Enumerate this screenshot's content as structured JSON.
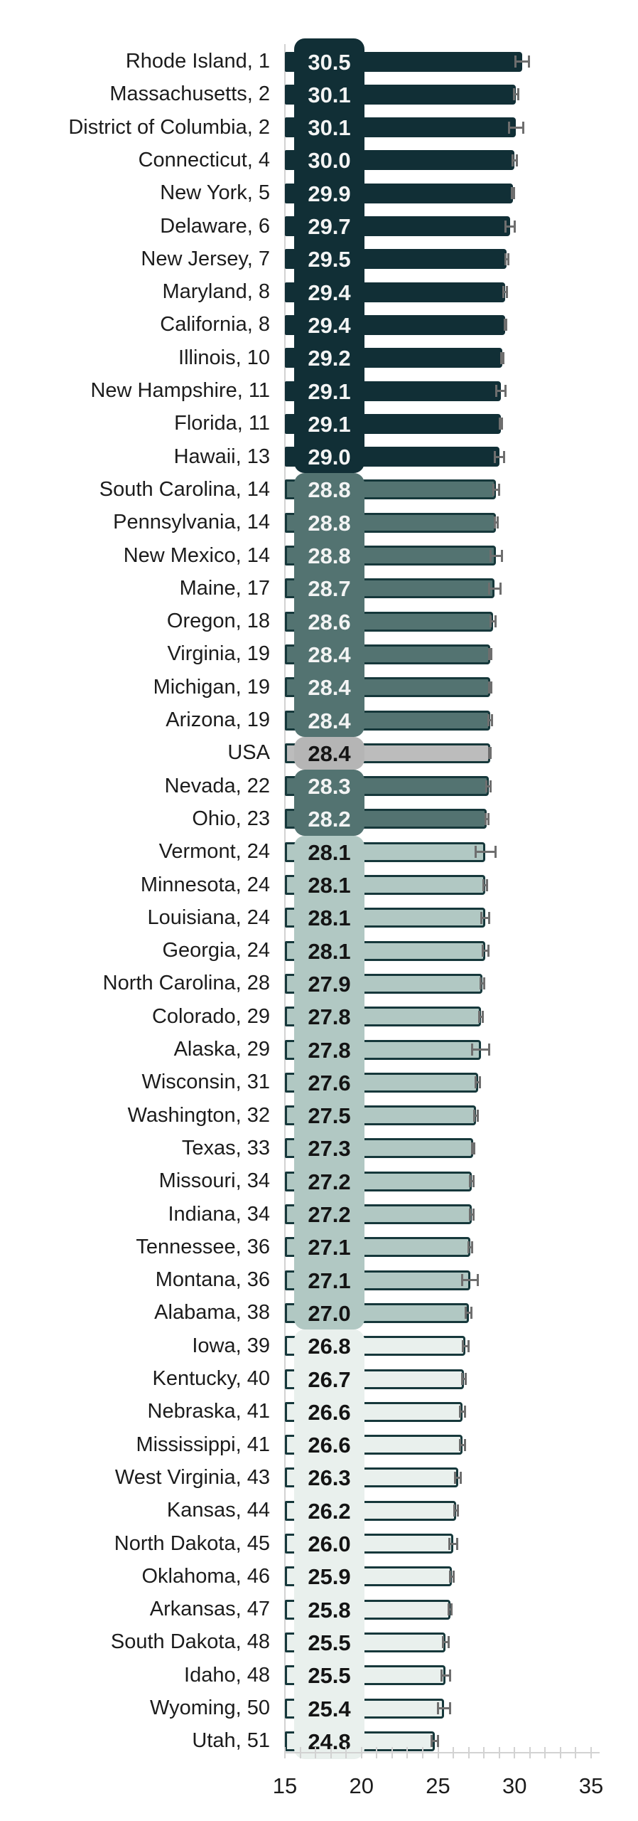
{
  "chart_data": {
    "type": "bar",
    "orientation": "horizontal",
    "title": "",
    "xlabel": "",
    "ylabel": "",
    "x_axis": {
      "min": 15,
      "max": 35,
      "major_ticks": [
        15,
        20,
        25,
        30,
        35
      ],
      "minor_tick_step": 1
    },
    "axis_tick_labels": [
      "15",
      "20",
      "25",
      "30",
      "35"
    ],
    "legend": null,
    "grid": false,
    "error_bars": true,
    "groups": {
      "dark": {
        "fill": "#112f36",
        "border": "#112f36",
        "text": "#f3f4f4",
        "column_bg": "#112f36"
      },
      "medium": {
        "fill": "#537371",
        "border": "#16383b",
        "text": "#f3f4f4",
        "column_bg": "#537371"
      },
      "usa": {
        "fill": "#bcbcbc",
        "border": "#16383b",
        "text": "#141414",
        "column_bg": "#b5b5b5"
      },
      "light": {
        "fill": "#b1c8c3",
        "border": "#16383b",
        "text": "#141414",
        "column_bg": "#b1c8c3"
      },
      "lightest": {
        "fill": "#e9f0ed",
        "border": "#16383b",
        "text": "#141414",
        "column_bg": "#e9f0ed"
      }
    },
    "segments": [
      {
        "group": "dark",
        "from": 0,
        "to": 12
      },
      {
        "group": "medium",
        "from": 13,
        "to": 20
      },
      {
        "group": "usa",
        "from": 21,
        "to": 21
      },
      {
        "group": "medium",
        "from": 22,
        "to": 23
      },
      {
        "group": "light",
        "from": 24,
        "to": 38
      },
      {
        "group": "lightest",
        "from": 39,
        "to": 51
      }
    ],
    "rows": [
      {
        "label": "Rhode Island, 1",
        "state": "Rhode Island",
        "rank": 1,
        "value": 30.5,
        "value_label": "30.5",
        "error": 0.45,
        "group": "dark"
      },
      {
        "label": "Massachusetts, 2",
        "state": "Massachusetts",
        "rank": 2,
        "value": 30.1,
        "value_label": "30.1",
        "error": 0.15,
        "group": "dark"
      },
      {
        "label": "District of Columbia, 2",
        "state": "District of Columbia",
        "rank": 2,
        "value": 30.1,
        "value_label": "30.1",
        "error": 0.45,
        "group": "dark"
      },
      {
        "label": "Connecticut, 4",
        "state": "Connecticut",
        "rank": 4,
        "value": 30.0,
        "value_label": "30.0",
        "error": 0.15,
        "group": "dark"
      },
      {
        "label": "New York, 5",
        "state": "New York",
        "rank": 5,
        "value": 29.9,
        "value_label": "29.9",
        "error": 0.08,
        "group": "dark"
      },
      {
        "label": "Delaware, 6",
        "state": "Delaware",
        "rank": 6,
        "value": 29.7,
        "value_label": "29.7",
        "error": 0.3,
        "group": "dark"
      },
      {
        "label": "New Jersey, 7",
        "state": "New Jersey",
        "rank": 7,
        "value": 29.5,
        "value_label": "29.5",
        "error": 0.08,
        "group": "dark"
      },
      {
        "label": "Maryland, 8",
        "state": "Maryland",
        "rank": 8,
        "value": 29.4,
        "value_label": "29.4",
        "error": 0.12,
        "group": "dark"
      },
      {
        "label": "California, 8",
        "state": "California",
        "rank": 8,
        "value": 29.4,
        "value_label": "29.4",
        "error": 0.05,
        "group": "dark"
      },
      {
        "label": "Illinois, 10",
        "state": "Illinois",
        "rank": 10,
        "value": 29.2,
        "value_label": "29.2",
        "error": 0.08,
        "group": "dark"
      },
      {
        "label": "New Hampshire, 11",
        "state": "New Hampshire",
        "rank": 11,
        "value": 29.1,
        "value_label": "29.1",
        "error": 0.3,
        "group": "dark"
      },
      {
        "label": "Florida, 11",
        "state": "Florida",
        "rank": 11,
        "value": 29.1,
        "value_label": "29.1",
        "error": 0.08,
        "group": "dark"
      },
      {
        "label": "Hawaii, 13",
        "state": "Hawaii",
        "rank": 13,
        "value": 29.0,
        "value_label": "29.0",
        "error": 0.3,
        "group": "dark"
      },
      {
        "label": "South Carolina, 14",
        "state": "South Carolina",
        "rank": 14,
        "value": 28.8,
        "value_label": "28.8",
        "error": 0.18,
        "group": "medium"
      },
      {
        "label": "Pennsylvania, 14",
        "state": "Pennsylvania",
        "rank": 14,
        "value": 28.8,
        "value_label": "28.8",
        "error": 0.1,
        "group": "medium"
      },
      {
        "label": "New Mexico, 14",
        "state": "New Mexico",
        "rank": 14,
        "value": 28.8,
        "value_label": "28.8",
        "error": 0.38,
        "group": "medium"
      },
      {
        "label": "Maine, 17",
        "state": "Maine",
        "rank": 17,
        "value": 28.7,
        "value_label": "28.7",
        "error": 0.38,
        "group": "medium"
      },
      {
        "label": "Oregon, 18",
        "state": "Oregon",
        "rank": 18,
        "value": 28.6,
        "value_label": "28.6",
        "error": 0.15,
        "group": "medium"
      },
      {
        "label": "Virginia, 19",
        "state": "Virginia",
        "rank": 19,
        "value": 28.4,
        "value_label": "28.4",
        "error": 0.08,
        "group": "medium"
      },
      {
        "label": "Michigan, 19",
        "state": "Michigan",
        "rank": 19,
        "value": 28.4,
        "value_label": "28.4",
        "error": 0.08,
        "group": "medium"
      },
      {
        "label": "Arizona, 19",
        "state": "Arizona",
        "rank": 19,
        "value": 28.4,
        "value_label": "28.4",
        "error": 0.12,
        "group": "medium"
      },
      {
        "label": "USA",
        "state": "USA",
        "rank": null,
        "value": 28.4,
        "value_label": "28.4",
        "error": 0.05,
        "group": "usa"
      },
      {
        "label": "Nevada, 22",
        "state": "Nevada",
        "rank": 22,
        "value": 28.3,
        "value_label": "28.3",
        "error": 0.15,
        "group": "medium"
      },
      {
        "label": "Ohio, 23",
        "state": "Ohio",
        "rank": 23,
        "value": 28.2,
        "value_label": "28.2",
        "error": 0.1,
        "group": "medium"
      },
      {
        "label": "Vermont, 24",
        "state": "Vermont",
        "rank": 24,
        "value": 28.1,
        "value_label": "28.1",
        "error": 0.65,
        "group": "light"
      },
      {
        "label": "Minnesota, 24",
        "state": "Minnesota",
        "rank": 24,
        "value": 28.1,
        "value_label": "28.1",
        "error": 0.12,
        "group": "light"
      },
      {
        "label": "Louisiana, 24",
        "state": "Louisiana",
        "rank": 24,
        "value": 28.1,
        "value_label": "28.1",
        "error": 0.25,
        "group": "light"
      },
      {
        "label": "Georgia, 24",
        "state": "Georgia",
        "rank": 24,
        "value": 28.1,
        "value_label": "28.1",
        "error": 0.18,
        "group": "light"
      },
      {
        "label": "North Carolina, 28",
        "state": "North Carolina",
        "rank": 28,
        "value": 27.9,
        "value_label": "27.9",
        "error": 0.1,
        "group": "light"
      },
      {
        "label": "Colorado, 29",
        "state": "Colorado",
        "rank": 29,
        "value": 27.8,
        "value_label": "27.8",
        "error": 0.12,
        "group": "light"
      },
      {
        "label": "Alaska, 29",
        "state": "Alaska",
        "rank": 29,
        "value": 27.8,
        "value_label": "27.8",
        "error": 0.55,
        "group": "light"
      },
      {
        "label": "Wisconsin, 31",
        "state": "Wisconsin",
        "rank": 31,
        "value": 27.6,
        "value_label": "27.6",
        "error": 0.12,
        "group": "light"
      },
      {
        "label": "Washington, 32",
        "state": "Washington",
        "rank": 32,
        "value": 27.5,
        "value_label": "27.5",
        "error": 0.12,
        "group": "light"
      },
      {
        "label": "Texas, 33",
        "state": "Texas",
        "rank": 33,
        "value": 27.3,
        "value_label": "27.3",
        "error": 0.07,
        "group": "light"
      },
      {
        "label": "Missouri, 34",
        "state": "Missouri",
        "rank": 34,
        "value": 27.2,
        "value_label": "27.2",
        "error": 0.12,
        "group": "light"
      },
      {
        "label": "Indiana, 34",
        "state": "Indiana",
        "rank": 34,
        "value": 27.2,
        "value_label": "27.2",
        "error": 0.12,
        "group": "light"
      },
      {
        "label": "Tennessee, 36",
        "state": "Tennessee",
        "rank": 36,
        "value": 27.1,
        "value_label": "27.1",
        "error": 0.12,
        "group": "light"
      },
      {
        "label": "Montana, 36",
        "state": "Montana",
        "rank": 36,
        "value": 27.1,
        "value_label": "27.1",
        "error": 0.5,
        "group": "light"
      },
      {
        "label": "Alabama, 38",
        "state": "Alabama",
        "rank": 38,
        "value": 27.0,
        "value_label": "27.0",
        "error": 0.18,
        "group": "light"
      },
      {
        "label": "Iowa, 39",
        "state": "Iowa",
        "rank": 39,
        "value": 26.8,
        "value_label": "26.8",
        "error": 0.18,
        "group": "lightest"
      },
      {
        "label": "Kentucky, 40",
        "state": "Kentucky",
        "rank": 40,
        "value": 26.7,
        "value_label": "26.7",
        "error": 0.12,
        "group": "lightest"
      },
      {
        "label": "Nebraska, 41",
        "state": "Nebraska",
        "rank": 41,
        "value": 26.6,
        "value_label": "26.6",
        "error": 0.18,
        "group": "lightest"
      },
      {
        "label": "Mississippi, 41",
        "state": "Mississippi",
        "rank": 41,
        "value": 26.6,
        "value_label": "26.6",
        "error": 0.18,
        "group": "lightest"
      },
      {
        "label": "West Virginia, 43",
        "state": "West Virginia",
        "rank": 43,
        "value": 26.3,
        "value_label": "26.3",
        "error": 0.18,
        "group": "lightest"
      },
      {
        "label": "Kansas, 44",
        "state": "Kansas",
        "rank": 44,
        "value": 26.2,
        "value_label": "26.2",
        "error": 0.12,
        "group": "lightest"
      },
      {
        "label": "North Dakota, 45",
        "state": "North Dakota",
        "rank": 45,
        "value": 26.0,
        "value_label": "26.0",
        "error": 0.25,
        "group": "lightest"
      },
      {
        "label": "Oklahoma, 46",
        "state": "Oklahoma",
        "rank": 46,
        "value": 25.9,
        "value_label": "25.9",
        "error": 0.12,
        "group": "lightest"
      },
      {
        "label": "Arkansas, 47",
        "state": "Arkansas",
        "rank": 47,
        "value": 25.8,
        "value_label": "25.8",
        "error": 0.1,
        "group": "lightest"
      },
      {
        "label": "South Dakota, 48",
        "state": "South Dakota",
        "rank": 48,
        "value": 25.5,
        "value_label": "25.5",
        "error": 0.18,
        "group": "lightest"
      },
      {
        "label": "Idaho, 48",
        "state": "Idaho",
        "rank": 48,
        "value": 25.5,
        "value_label": "25.5",
        "error": 0.28,
        "group": "lightest"
      },
      {
        "label": "Wyoming, 50",
        "state": "Wyoming",
        "rank": 50,
        "value": 25.4,
        "value_label": "25.4",
        "error": 0.4,
        "group": "lightest"
      },
      {
        "label": "Utah, 51",
        "state": "Utah",
        "rank": 51,
        "value": 24.8,
        "value_label": "24.8",
        "error": 0.2,
        "group": "lightest"
      }
    ],
    "colors": {
      "error_bar": "#6e6e6e",
      "axis": "#d2d2d2",
      "axis_text": "#1c1c1c",
      "state_text": "#1c1c1c",
      "background": "#ffffff"
    }
  }
}
